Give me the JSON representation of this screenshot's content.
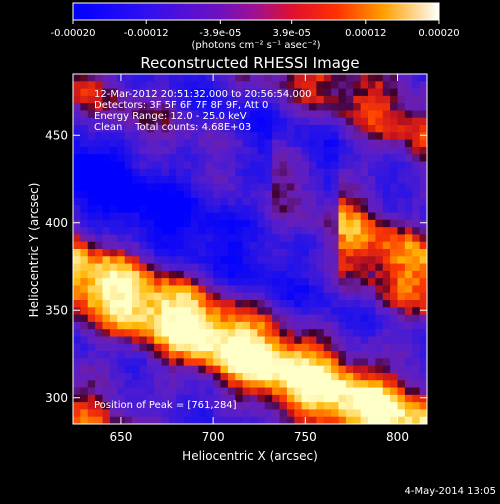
{
  "colorbar": {
    "tick_labels": [
      "-0.00020",
      "-0.00012",
      "-3.9e-05",
      "3.9e-05",
      "0.00012",
      "0.00020"
    ],
    "tick_values": [
      -0.0002,
      -0.00012,
      -3.9e-05,
      3.9e-05,
      0.00012,
      0.0002
    ],
    "range": [
      -0.0002,
      0.0002
    ],
    "unit_label": "(photons cm⁻² s⁻¹ asec⁻²)"
  },
  "chart_data": {
    "type": "heatmap",
    "title": "Reconstructed RHESSI Image",
    "xlabel": "Heliocentric X (arcsec)",
    "ylabel": "Heliocentric Y (arcsec)",
    "xlim": [
      624,
      816
    ],
    "ylim": [
      285,
      485
    ],
    "x_ticks": [
      650,
      700,
      750,
      800
    ],
    "y_ticks": [
      300,
      350,
      400,
      450
    ],
    "color_scale": "blue-purple-red-yellow-white",
    "colors": {
      "negative": "#0a0aff",
      "zero": "#6020c0",
      "positive": "#ff3000",
      "max": "#ffffc0"
    },
    "info_lines": [
      "12-Mar-2012 20:51:32.000 to 20:56:54.000",
      "Detectors: 3F 5F 6F 7F 8F 9F, Att 0",
      "Energy Range: 12.0 - 25.0 keV",
      "Clean    Total counts: 4.68E+03"
    ],
    "peak_label": "Position of Peak = [761,284]",
    "peak_position": [
      761,
      284
    ]
  },
  "footer_date": "4-May-2014 13:05"
}
